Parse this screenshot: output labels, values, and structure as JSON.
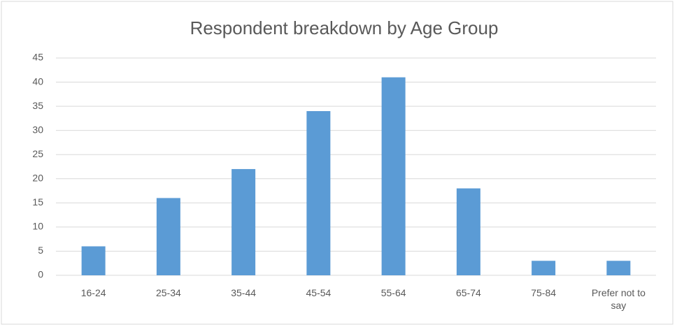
{
  "chart_data": {
    "type": "bar",
    "title": "Respondent breakdown by Age Group",
    "categories": [
      "16-24",
      "25-34",
      "35-44",
      "45-54",
      "55-64",
      "65-74",
      "75-84",
      "Prefer not to say"
    ],
    "values": [
      6,
      16,
      22,
      34,
      41,
      18,
      3,
      3
    ],
    "color": "#5b9bd5",
    "ylim": [
      0,
      45
    ],
    "yticks": [
      0,
      5,
      10,
      15,
      20,
      25,
      30,
      35,
      40,
      45
    ],
    "grid": true
  }
}
